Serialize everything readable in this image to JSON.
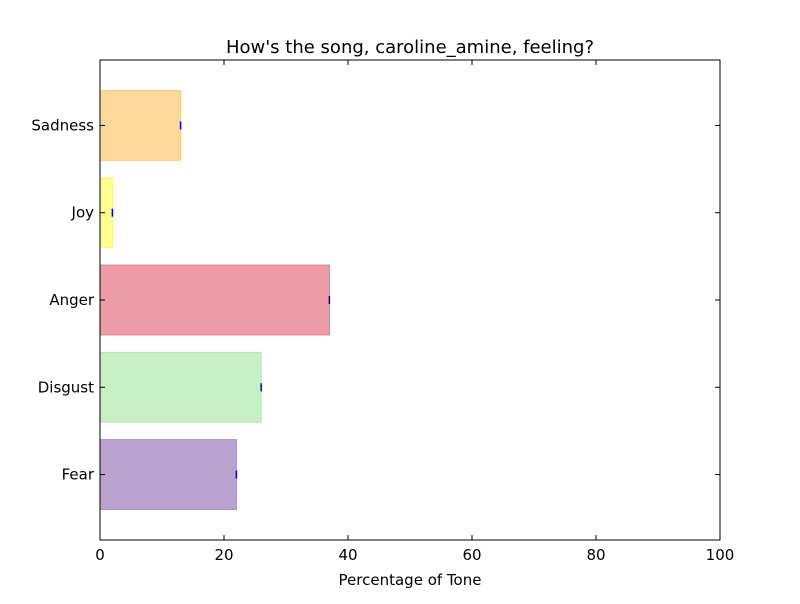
{
  "chart_data": {
    "type": "bar",
    "orientation": "horizontal",
    "title": "How's the song, caroline_amine, feeling?",
    "xlabel": "Percentage of Tone",
    "ylabel": "",
    "xlim": [
      0,
      100
    ],
    "xticks": [
      0,
      20,
      40,
      60,
      80,
      100
    ],
    "categories": [
      "Fear",
      "Disgust",
      "Anger",
      "Joy",
      "Sadness"
    ],
    "values": [
      22,
      26,
      37,
      2,
      13
    ],
    "colors": [
      "#b9a2d0",
      "#c7f0c7",
      "#ee9ba8",
      "#fdfd90",
      "#fed898"
    ],
    "edge_colors": [
      "#a889c4",
      "#b0e8b0",
      "#e57a8c",
      "#f7f77a",
      "#f9c985"
    ],
    "error_bar_color": "#0000cc",
    "grid": false,
    "legend": "none"
  }
}
